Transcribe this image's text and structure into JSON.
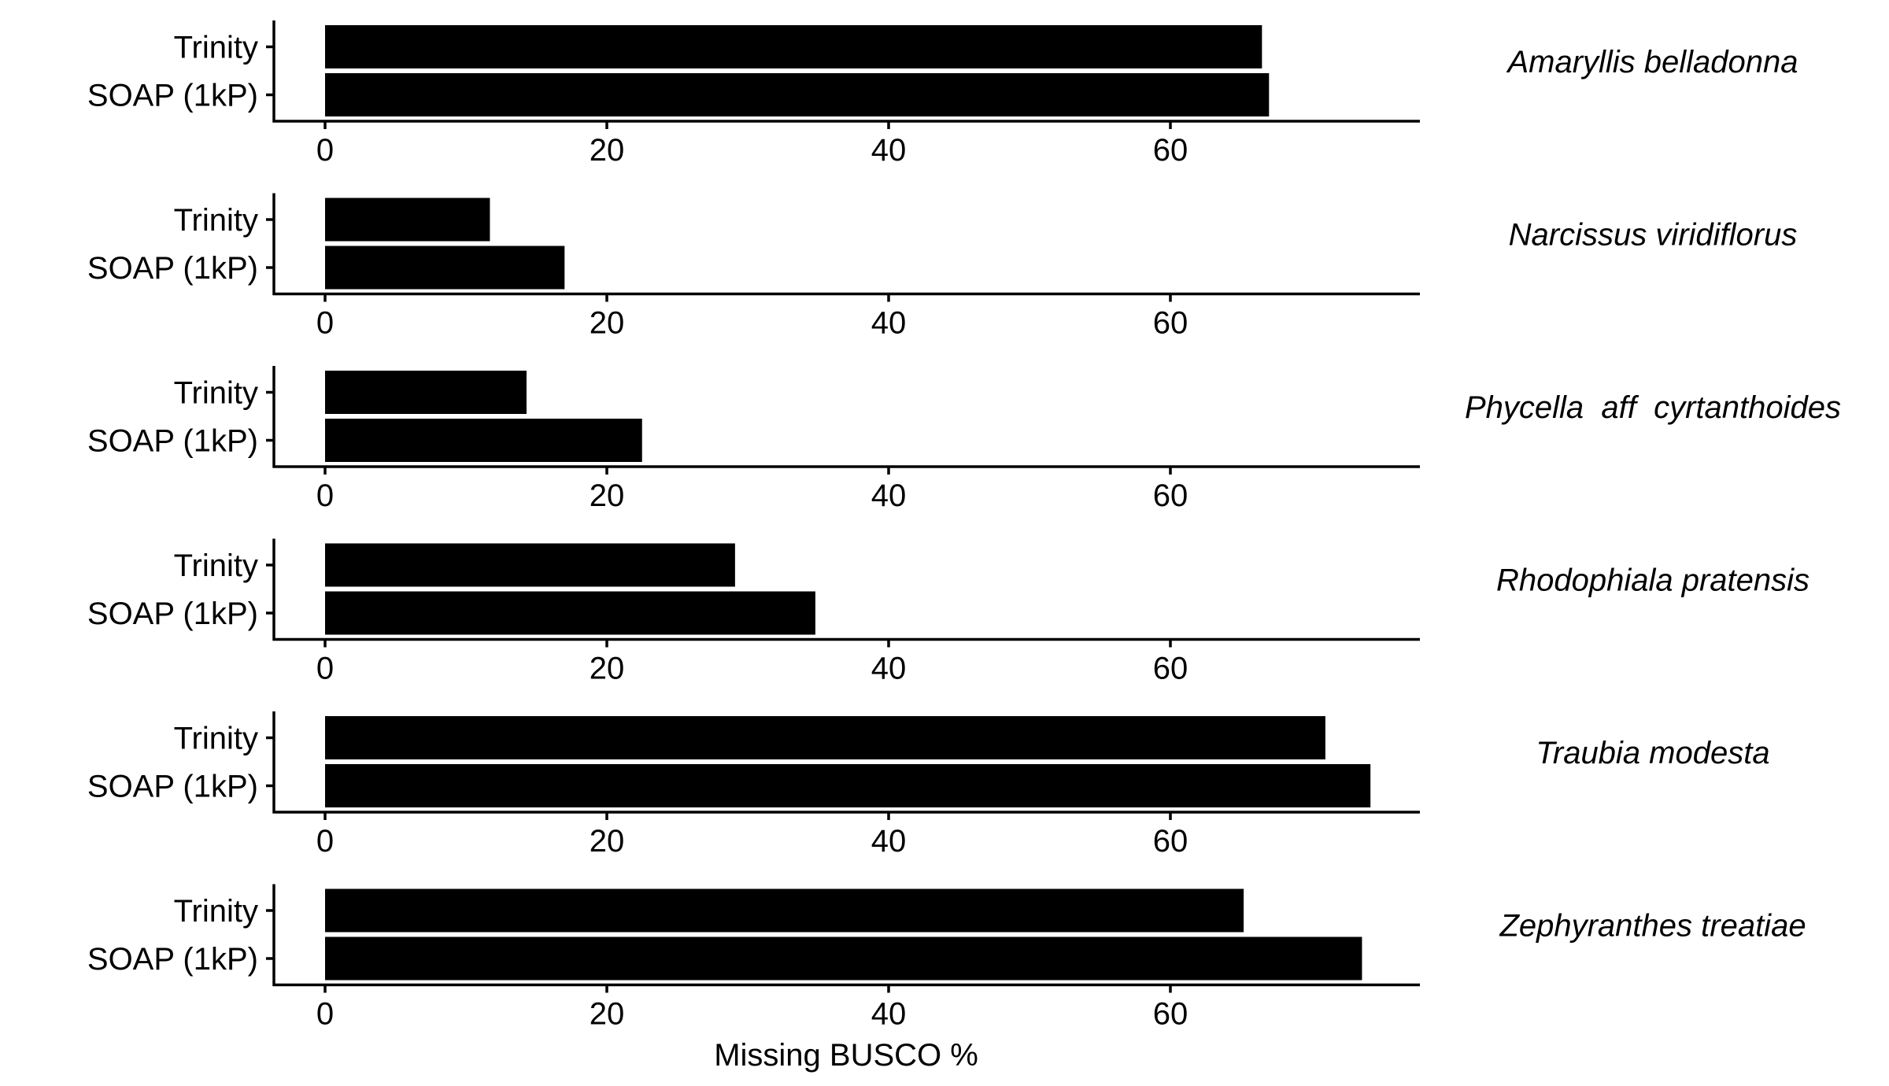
{
  "chart_data": {
    "type": "bar",
    "orientation": "horizontal",
    "xlabel": "Missing BUSCO %",
    "ylabel": "",
    "xlim": [
      -2.8,
      77
    ],
    "x_ticks": [
      0,
      20,
      40,
      60
    ],
    "categories": [
      "Trinity",
      "SOAP (1kP)"
    ],
    "grid": false,
    "legend": "none",
    "bar_color": "#000000",
    "panels": [
      {
        "name": "Amaryllis belladonna",
        "series": [
          {
            "values": [
              66.5,
              67.0
            ]
          }
        ]
      },
      {
        "name": "Narcissus viridiflorus",
        "series": [
          {
            "values": [
              11.7,
              17.0
            ]
          }
        ]
      },
      {
        "name": "Phycella  aff  cyrtanthoides",
        "series": [
          {
            "values": [
              14.3,
              22.5
            ]
          }
        ]
      },
      {
        "name": "Rhodophiala pratensis",
        "series": [
          {
            "values": [
              29.1,
              34.8
            ]
          }
        ]
      },
      {
        "name": "Traubia modesta",
        "series": [
          {
            "values": [
              71.0,
              74.2
            ]
          }
        ]
      },
      {
        "name": "Zephyranthes treatiae",
        "series": [
          {
            "values": [
              65.2,
              73.6
            ]
          }
        ]
      }
    ]
  }
}
